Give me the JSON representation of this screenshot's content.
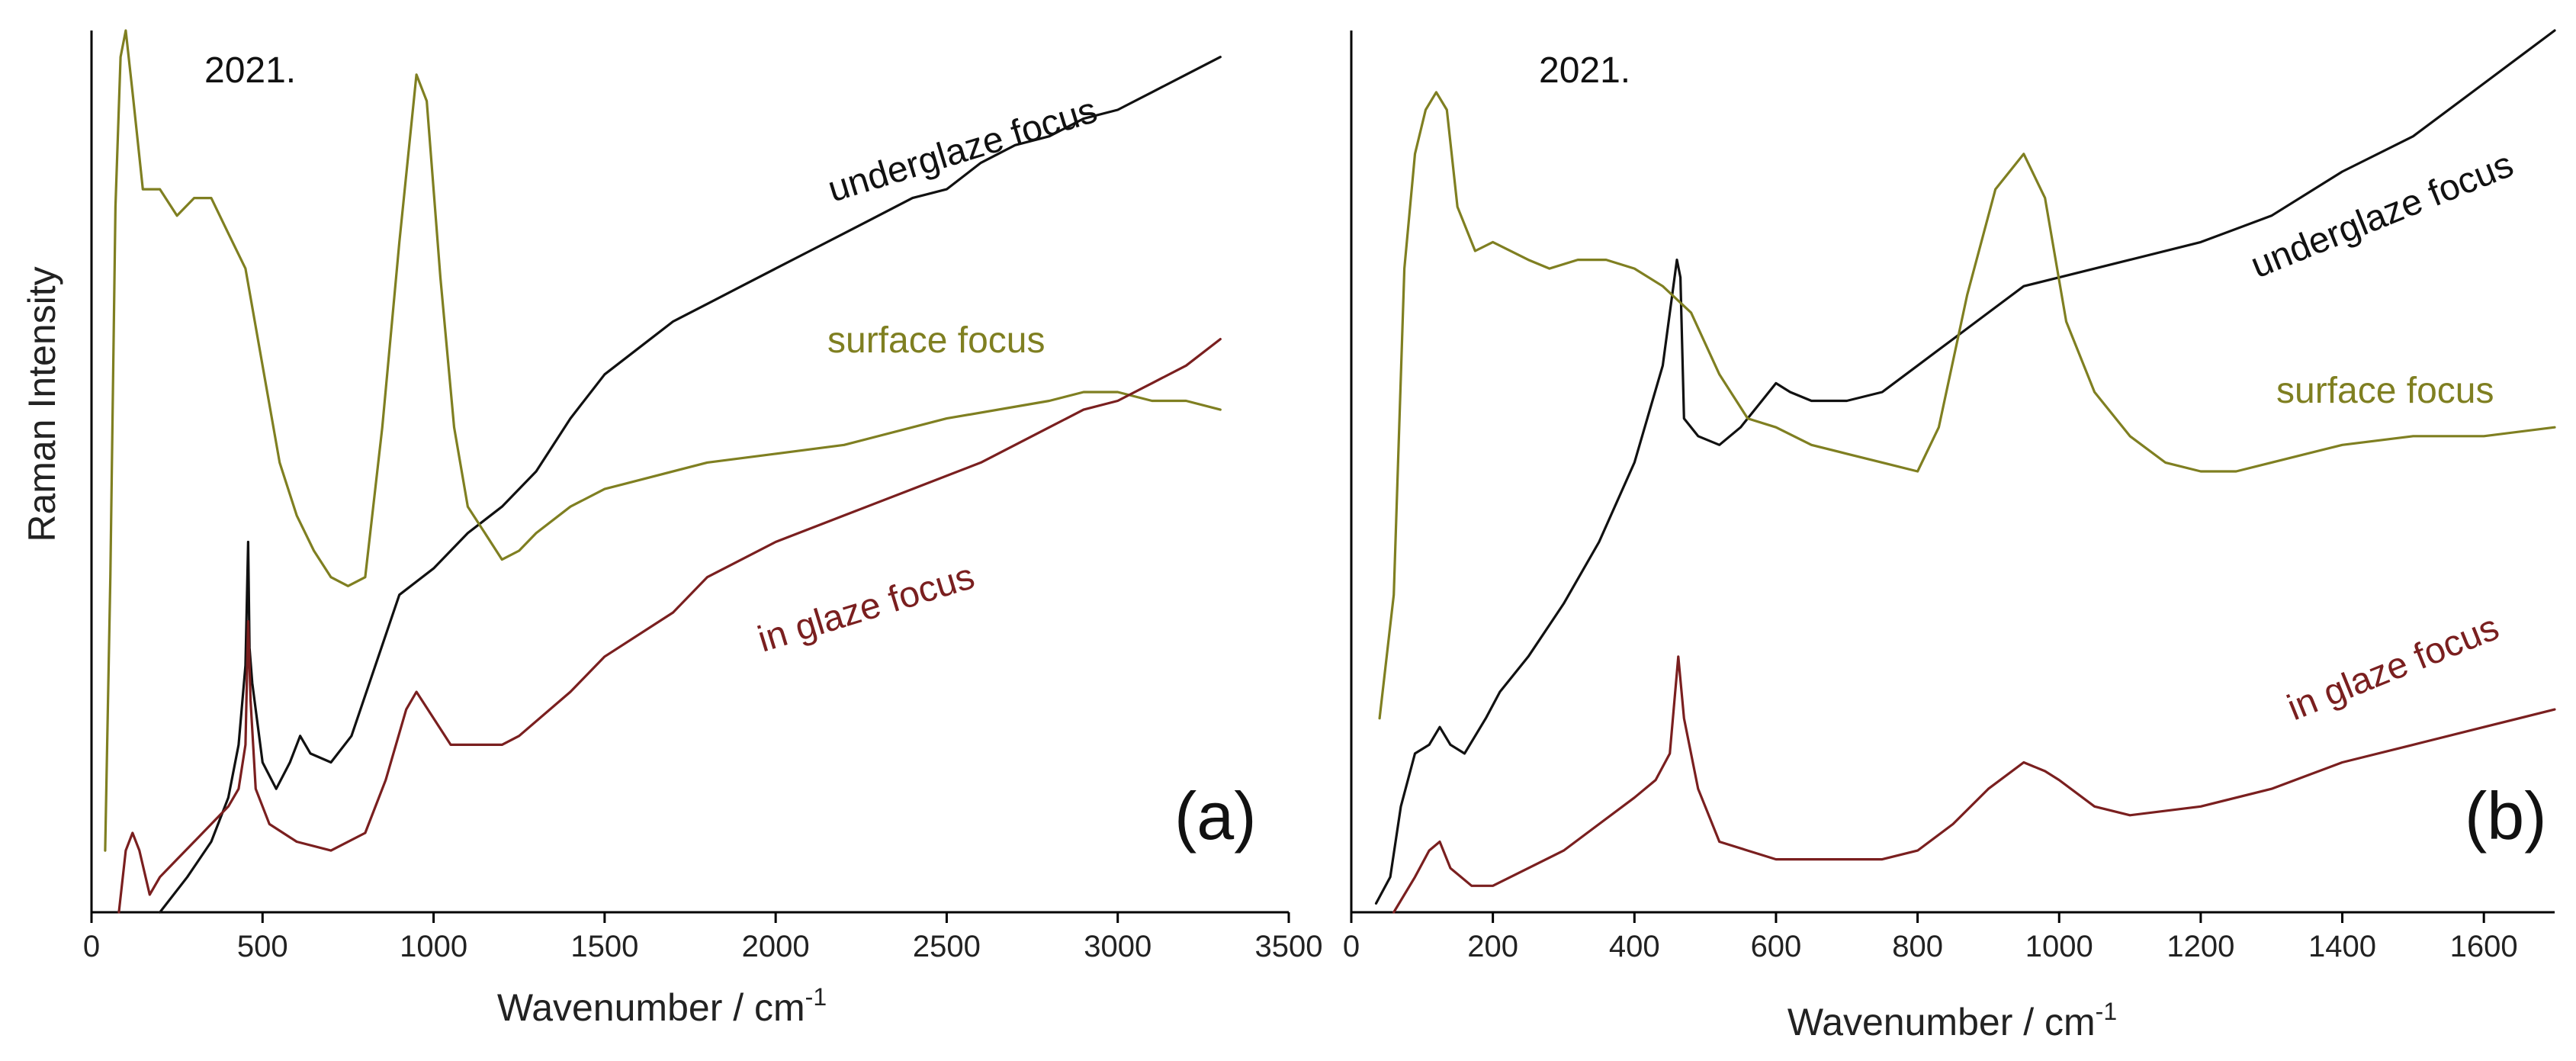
{
  "figure": {
    "y_axis_title": "Raman Intensity",
    "x_unit_superscript": "-1"
  },
  "colors": {
    "underglaze": "#111111",
    "surface": "#7f7f21",
    "in_glaze": "#7a1f1f"
  },
  "chart_data": [
    {
      "type": "line",
      "panel_label": "(a)",
      "annotation": "2021.",
      "xlabel": "Wavenumber / cm",
      "ylabel": "Raman Intensity",
      "xlim": [
        0,
        3500
      ],
      "ylim": [
        0,
        100
      ],
      "xticks": [
        0,
        500,
        1000,
        1500,
        2000,
        2500,
        3000,
        3500
      ],
      "yticks_shown": false,
      "grid": false,
      "series": [
        {
          "name": "underglaze focus",
          "color_key": "underglaze",
          "label_text": "underglaze focus",
          "points": [
            [
              200,
              0
            ],
            [
              280,
              4
            ],
            [
              350,
              8
            ],
            [
              400,
              13
            ],
            [
              430,
              19
            ],
            [
              450,
              28
            ],
            [
              458,
              42
            ],
            [
              462,
              30
            ],
            [
              470,
              26
            ],
            [
              500,
              17
            ],
            [
              540,
              14
            ],
            [
              580,
              17
            ],
            [
              610,
              20
            ],
            [
              640,
              18
            ],
            [
              700,
              17
            ],
            [
              760,
              20
            ],
            [
              830,
              28
            ],
            [
              900,
              36
            ],
            [
              1000,
              39
            ],
            [
              1100,
              43
            ],
            [
              1200,
              46
            ],
            [
              1300,
              50
            ],
            [
              1400,
              56
            ],
            [
              1500,
              61
            ],
            [
              1600,
              64
            ],
            [
              1700,
              67
            ],
            [
              1800,
              69
            ],
            [
              1900,
              71
            ],
            [
              2000,
              73
            ],
            [
              2100,
              75
            ],
            [
              2200,
              77
            ],
            [
              2300,
              79
            ],
            [
              2400,
              81
            ],
            [
              2500,
              82
            ],
            [
              2600,
              85
            ],
            [
              2700,
              87
            ],
            [
              2800,
              88
            ],
            [
              2900,
              90
            ],
            [
              3000,
              91
            ],
            [
              3100,
              93
            ],
            [
              3200,
              95
            ],
            [
              3300,
              97
            ]
          ]
        },
        {
          "name": "surface focus",
          "color_key": "surface",
          "label_text": "surface focus",
          "points": [
            [
              40,
              7
            ],
            [
              55,
              38
            ],
            [
              70,
              80
            ],
            [
              85,
              97
            ],
            [
              100,
              100
            ],
            [
              120,
              93
            ],
            [
              150,
              82
            ],
            [
              200,
              82
            ],
            [
              250,
              79
            ],
            [
              300,
              81
            ],
            [
              350,
              81
            ],
            [
              400,
              77
            ],
            [
              450,
              73
            ],
            [
              500,
              62
            ],
            [
              550,
              51
            ],
            [
              600,
              45
            ],
            [
              650,
              41
            ],
            [
              700,
              38
            ],
            [
              750,
              37
            ],
            [
              800,
              38
            ],
            [
              850,
              55
            ],
            [
              900,
              76
            ],
            [
              950,
              95
            ],
            [
              980,
              92
            ],
            [
              1020,
              72
            ],
            [
              1060,
              55
            ],
            [
              1100,
              46
            ],
            [
              1150,
              43
            ],
            [
              1200,
              40
            ],
            [
              1250,
              41
            ],
            [
              1300,
              43
            ],
            [
              1400,
              46
            ],
            [
              1500,
              48
            ],
            [
              1600,
              49
            ],
            [
              1800,
              51
            ],
            [
              2000,
              52
            ],
            [
              2200,
              53
            ],
            [
              2500,
              56
            ],
            [
              2800,
              58
            ],
            [
              2900,
              59
            ],
            [
              3000,
              59
            ],
            [
              3100,
              58
            ],
            [
              3200,
              58
            ],
            [
              3300,
              57
            ]
          ]
        },
        {
          "name": "in glaze focus",
          "color_key": "in_glaze",
          "label_text": "in glaze focus",
          "points": [
            [
              80,
              0
            ],
            [
              100,
              7
            ],
            [
              120,
              9
            ],
            [
              140,
              7
            ],
            [
              170,
              2
            ],
            [
              200,
              4
            ],
            [
              250,
              6
            ],
            [
              300,
              8
            ],
            [
              350,
              10
            ],
            [
              400,
              12
            ],
            [
              430,
              14
            ],
            [
              450,
              19
            ],
            [
              458,
              33
            ],
            [
              465,
              24
            ],
            [
              480,
              14
            ],
            [
              520,
              10
            ],
            [
              600,
              8
            ],
            [
              700,
              7
            ],
            [
              800,
              9
            ],
            [
              860,
              15
            ],
            [
              920,
              23
            ],
            [
              950,
              25
            ],
            [
              1000,
              22
            ],
            [
              1050,
              19
            ],
            [
              1100,
              19
            ],
            [
              1200,
              19
            ],
            [
              1250,
              20
            ],
            [
              1400,
              25
            ],
            [
              1500,
              29
            ],
            [
              1700,
              34
            ],
            [
              1800,
              38
            ],
            [
              2000,
              42
            ],
            [
              2200,
              45
            ],
            [
              2400,
              48
            ],
            [
              2600,
              51
            ],
            [
              2800,
              55
            ],
            [
              2900,
              57
            ],
            [
              3000,
              58
            ],
            [
              3100,
              60
            ],
            [
              3200,
              62
            ],
            [
              3300,
              65
            ]
          ]
        }
      ]
    },
    {
      "type": "line",
      "panel_label": "(b)",
      "annotation": "2021.",
      "xlabel": "Wavenumber / cm",
      "ylabel": "Raman Intensity",
      "xlim": [
        0,
        1700
      ],
      "ylim": [
        0,
        100
      ],
      "xticks": [
        0,
        200,
        400,
        600,
        800,
        1000,
        1200,
        1400,
        1600
      ],
      "yticks_shown": false,
      "grid": false,
      "series": [
        {
          "name": "underglaze focus",
          "color_key": "underglaze",
          "label_text": "underglaze focus",
          "points": [
            [
              35,
              1
            ],
            [
              55,
              4
            ],
            [
              70,
              12
            ],
            [
              90,
              18
            ],
            [
              110,
              19
            ],
            [
              125,
              21
            ],
            [
              140,
              19
            ],
            [
              160,
              18
            ],
            [
              190,
              22
            ],
            [
              210,
              25
            ],
            [
              250,
              29
            ],
            [
              300,
              35
            ],
            [
              350,
              42
            ],
            [
              400,
              51
            ],
            [
              440,
              62
            ],
            [
              460,
              74
            ],
            [
              465,
              72
            ],
            [
              470,
              56
            ],
            [
              490,
              54
            ],
            [
              520,
              53
            ],
            [
              550,
              55
            ],
            [
              580,
              58
            ],
            [
              600,
              60
            ],
            [
              620,
              59
            ],
            [
              650,
              58
            ],
            [
              700,
              58
            ],
            [
              750,
              59
            ],
            [
              800,
              62
            ],
            [
              850,
              65
            ],
            [
              900,
              68
            ],
            [
              950,
              71
            ],
            [
              1000,
              72
            ],
            [
              1100,
              74
            ],
            [
              1200,
              76
            ],
            [
              1300,
              79
            ],
            [
              1400,
              84
            ],
            [
              1500,
              88
            ],
            [
              1600,
              94
            ],
            [
              1650,
              97
            ],
            [
              1700,
              100
            ]
          ]
        },
        {
          "name": "surface focus",
          "color_key": "surface",
          "label_text": "surface focus",
          "points": [
            [
              40,
              22
            ],
            [
              60,
              36
            ],
            [
              75,
              73
            ],
            [
              90,
              86
            ],
            [
              105,
              91
            ],
            [
              120,
              93
            ],
            [
              135,
              91
            ],
            [
              150,
              80
            ],
            [
              175,
              75
            ],
            [
              200,
              76
            ],
            [
              250,
              74
            ],
            [
              280,
              73
            ],
            [
              320,
              74
            ],
            [
              360,
              74
            ],
            [
              400,
              73
            ],
            [
              440,
              71
            ],
            [
              480,
              68
            ],
            [
              520,
              61
            ],
            [
              560,
              56
            ],
            [
              600,
              55
            ],
            [
              650,
              53
            ],
            [
              700,
              52
            ],
            [
              750,
              51
            ],
            [
              800,
              50
            ],
            [
              830,
              55
            ],
            [
              870,
              70
            ],
            [
              910,
              82
            ],
            [
              950,
              86
            ],
            [
              980,
              81
            ],
            [
              1010,
              67
            ],
            [
              1050,
              59
            ],
            [
              1100,
              54
            ],
            [
              1150,
              51
            ],
            [
              1200,
              50
            ],
            [
              1250,
              50
            ],
            [
              1300,
              51
            ],
            [
              1400,
              53
            ],
            [
              1500,
              54
            ],
            [
              1600,
              54
            ],
            [
              1700,
              55
            ]
          ]
        },
        {
          "name": "in glaze focus",
          "color_key": "in_glaze",
          "label_text": "in glaze focus",
          "points": [
            [
              60,
              0
            ],
            [
              90,
              4
            ],
            [
              110,
              7
            ],
            [
              125,
              8
            ],
            [
              140,
              5
            ],
            [
              170,
              3
            ],
            [
              200,
              3
            ],
            [
              250,
              5
            ],
            [
              300,
              7
            ],
            [
              350,
              10
            ],
            [
              400,
              13
            ],
            [
              430,
              15
            ],
            [
              450,
              18
            ],
            [
              462,
              29
            ],
            [
              470,
              22
            ],
            [
              490,
              14
            ],
            [
              520,
              8
            ],
            [
              560,
              7
            ],
            [
              600,
              6
            ],
            [
              650,
              6
            ],
            [
              700,
              6
            ],
            [
              750,
              6
            ],
            [
              800,
              7
            ],
            [
              850,
              10
            ],
            [
              900,
              14
            ],
            [
              950,
              17
            ],
            [
              980,
              16
            ],
            [
              1000,
              15
            ],
            [
              1050,
              12
            ],
            [
              1100,
              11
            ],
            [
              1200,
              12
            ],
            [
              1300,
              14
            ],
            [
              1400,
              17
            ],
            [
              1500,
              19
            ],
            [
              1600,
              21
            ],
            [
              1700,
              23
            ]
          ]
        }
      ]
    }
  ]
}
